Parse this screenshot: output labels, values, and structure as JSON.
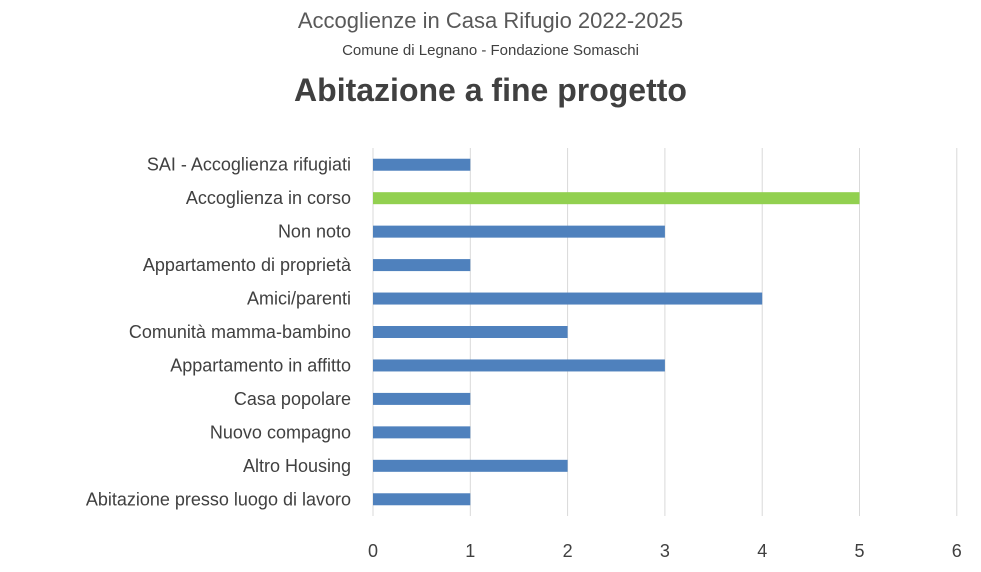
{
  "chart_data": {
    "type": "bar",
    "orientation": "horizontal",
    "title": "Accoglienze in Casa Rifugio 2022-2025",
    "subtitle": "Comune di Legnano - Fondazione Somaschi",
    "heading": "Abitazione a fine progetto",
    "categories": [
      "SAI - Accoglienza rifugiati",
      "Accoglienza in corso",
      "Non noto",
      "Appartamento di proprietà",
      "Amici/parenti",
      "Comunità mamma-bambino",
      "Appartamento in affitto",
      "Casa popolare",
      "Nuovo compagno",
      "Altro Housing",
      "Abitazione presso luogo di lavoro"
    ],
    "values": [
      1,
      5,
      3,
      1,
      4,
      2,
      3,
      1,
      1,
      2,
      1
    ],
    "bar_colors": [
      "#4f81bd",
      "#92d050",
      "#4f81bd",
      "#4f81bd",
      "#4f81bd",
      "#4f81bd",
      "#4f81bd",
      "#4f81bd",
      "#4f81bd",
      "#4f81bd",
      "#4f81bd"
    ],
    "xlim": [
      0,
      6
    ],
    "xticks": [
      "0",
      "1",
      "2",
      "3",
      "4",
      "5",
      "6"
    ],
    "grid": true,
    "legend": "none"
  }
}
